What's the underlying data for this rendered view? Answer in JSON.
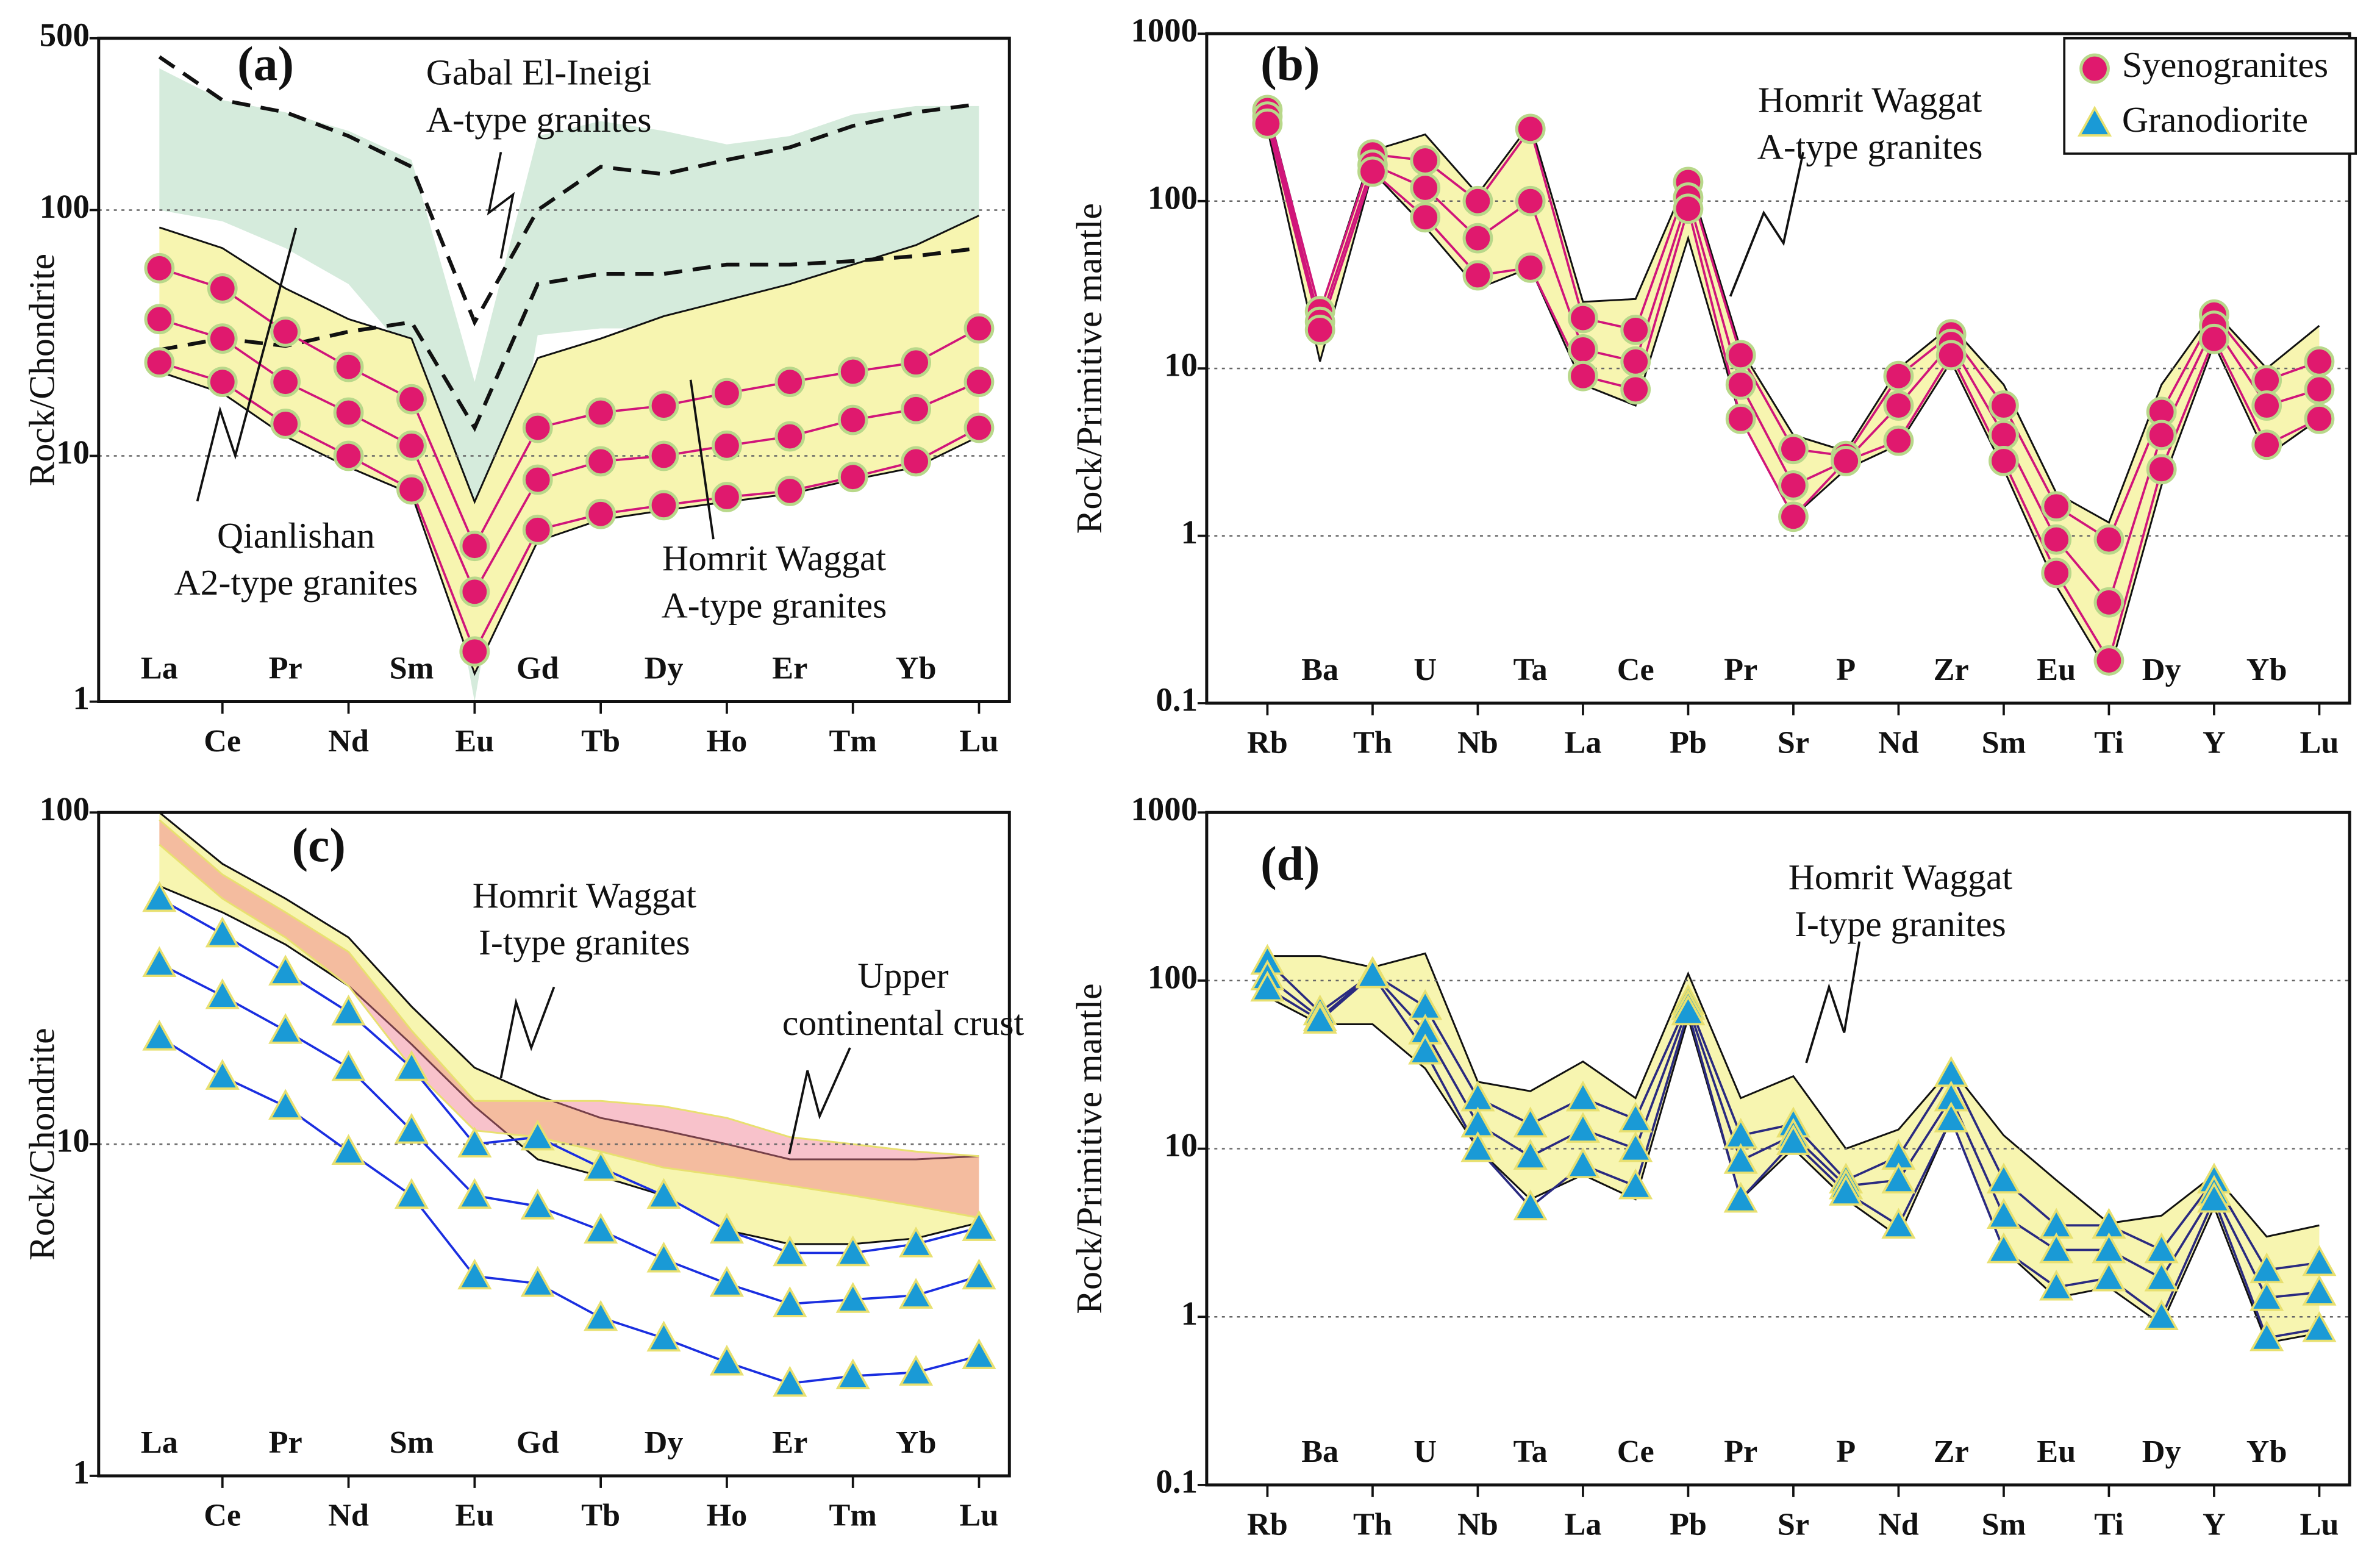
{
  "chart_data": [
    {
      "type": "line",
      "label": "(a)",
      "y_label": "Rock/Chondrite",
      "log_scale": true,
      "grid": true,
      "categories": [
        "La",
        "Ce",
        "Pr",
        "Nd",
        "Sm",
        "Eu",
        "Gd",
        "Tb",
        "Dy",
        "Ho",
        "Er",
        "Tm",
        "Yb",
        "Lu"
      ],
      "ylim": [
        1,
        500
      ],
      "yticks": [
        1,
        10,
        100,
        500
      ],
      "line_color": "#d0157a",
      "marker": "circle",
      "marker_color": "#e0196e",
      "marker_edge": "#b8d88a",
      "fields": [
        {
          "label": [
            "Gabal El-Ineigi",
            "A-type granites"
          ],
          "fill": "#d5ebdc",
          "stroke": "none",
          "style": "solid",
          "upper": [
            377,
            280,
            250,
            210,
            160,
            20,
            200,
            230,
            210,
            185,
            200,
            245,
            265,
            265
          ],
          "lower": [
            100,
            90,
            70,
            50,
            25,
            1,
            31,
            33,
            33,
            33,
            33,
            33,
            33,
            33
          ]
        },
        {
          "label": [
            "Homrit Waggat",
            "A-type granites"
          ],
          "fill": "#f7f5b0",
          "stroke": "#111",
          "style": "solid",
          "upper": [
            85,
            70,
            48,
            36,
            30,
            6.5,
            25,
            30,
            37,
            43,
            50,
            60,
            72,
            95
          ],
          "lower": [
            22,
            18,
            12,
            9,
            7,
            1.3,
            4.5,
            5.5,
            6,
            6.5,
            7,
            8,
            9,
            12
          ]
        },
        {
          "label": [
            "Qianlishan",
            "A2-type granites"
          ],
          "fill": "none",
          "stroke": "#111",
          "style": "dashed",
          "upper": [
            420,
            280,
            250,
            200,
            150,
            35,
            100,
            150,
            140,
            160,
            180,
            220,
            250,
            270
          ],
          "lower": [
            27,
            30,
            28,
            32,
            35,
            13,
            50,
            55,
            55,
            60,
            60,
            62,
            65,
            70
          ]
        }
      ],
      "series": [
        {
          "values": [
            58,
            48,
            32,
            23,
            17,
            4.3,
            13,
            15,
            16,
            18,
            20,
            22,
            24,
            33
          ]
        },
        {
          "values": [
            36,
            30,
            20,
            15,
            11,
            2.8,
            8,
            9.5,
            10,
            11,
            12,
            14,
            15.5,
            20
          ]
        },
        {
          "values": [
            24,
            20,
            13.5,
            10,
            7.3,
            1.6,
            5,
            5.8,
            6.3,
            6.8,
            7.2,
            8.2,
            9.5,
            13
          ]
        }
      ]
    },
    {
      "type": "line",
      "label": "(b)",
      "y_label": "Rock/Primitive mantle",
      "log_scale": true,
      "grid": true,
      "categories": [
        "Rb",
        "Ba",
        "Th",
        "U",
        "Nb",
        "Ta",
        "La",
        "Ce",
        "Pb",
        "Pr",
        "Sr",
        "P",
        "Nd",
        "Zr",
        "Sm",
        "Eu",
        "Ti",
        "Dy",
        "Y",
        "Yb",
        "Lu"
      ],
      "ylim": [
        0.1,
        1000
      ],
      "yticks": [
        0.1,
        1,
        10,
        100,
        1000
      ],
      "line_color": "#d0157a",
      "marker": "circle",
      "marker_color": "#e0196e",
      "marker_edge": "#b8d88a",
      "legend": [
        {
          "name": "Syenogranites",
          "marker": "circle",
          "color": "#e0196e"
        },
        {
          "name": "Granodiorite",
          "marker": "triangle",
          "color": "#1a9ad6"
        }
      ],
      "fields": [
        {
          "label": [
            "Homrit Waggat",
            "A-type granites"
          ],
          "fill": "#f7f5b0",
          "stroke": "#111",
          "style": "solid",
          "upper": [
            360,
            22,
            200,
            250,
            110,
            290,
            25,
            26,
            140,
            13,
            4,
            3.2,
            10,
            18,
            8,
            1.8,
            1.2,
            8,
            22,
            10,
            18
          ],
          "lower": [
            270,
            11,
            150,
            70,
            30,
            40,
            8,
            6,
            60,
            5,
            1.3,
            2.5,
            3.5,
            11,
            2.5,
            0.5,
            0.15,
            2,
            14,
            3,
            5
          ]
        }
      ],
      "series": [
        {
          "values": [
            350,
            22,
            190,
            175,
            100,
            270,
            20,
            17,
            130,
            12,
            3.3,
            3,
            9,
            16,
            6,
            1.5,
            0.95,
            5.5,
            21,
            8.5,
            11
          ]
        },
        {
          "values": [
            320,
            19,
            165,
            120,
            60,
            100,
            13,
            11,
            105,
            8,
            2,
            2.8,
            6,
            14,
            4,
            0.95,
            0.4,
            4,
            18,
            6,
            7.5
          ]
        },
        {
          "values": [
            290,
            17,
            150,
            80,
            36,
            40,
            9,
            7.5,
            90,
            5,
            1.3,
            2.8,
            3.7,
            12,
            2.8,
            0.6,
            0.18,
            2.5,
            15,
            3.5,
            5
          ]
        }
      ]
    },
    {
      "type": "line",
      "label": "(c)",
      "y_label": "Rock/Chondrite",
      "log_scale": true,
      "grid": true,
      "categories": [
        "La",
        "Ce",
        "Pr",
        "Nd",
        "Sm",
        "Eu",
        "Gd",
        "Tb",
        "Dy",
        "Ho",
        "Er",
        "Tm",
        "Yb",
        "Lu"
      ],
      "ylim": [
        1,
        100
      ],
      "yticks": [
        1,
        10,
        100
      ],
      "line_color": "#1a2ee0",
      "marker": "triangle",
      "marker_color": "#1a9ad6",
      "marker_edge": "#e8e070",
      "fields": [
        {
          "label": [
            "Homrit Waggat",
            "I-type granites"
          ],
          "fill": "#f7f5b0",
          "stroke": "#111",
          "style": "solid",
          "upper": [
            100,
            70,
            55,
            42,
            26,
            17,
            14,
            12,
            11,
            10,
            9,
            9,
            9,
            9.2
          ],
          "lower": [
            60,
            50,
            40,
            30,
            20,
            13,
            9,
            8,
            7,
            5.5,
            5,
            5,
            5.2,
            5.8
          ]
        },
        {
          "label": [
            "Upper",
            "continental crust"
          ],
          "fill": "rgba(240,120,140,0.45)",
          "stroke": "#e8e070",
          "style": "solid",
          "upper": [
            95,
            65,
            50,
            38,
            22,
            13.5,
            13.5,
            13.5,
            13,
            12,
            10.5,
            10,
            9.5,
            9.2
          ],
          "lower": [
            80,
            55,
            42,
            30,
            17,
            11,
            10.5,
            9.5,
            8.5,
            8,
            7.5,
            7,
            6.5,
            6
          ]
        }
      ],
      "series": [
        {
          "values": [
            55,
            43,
            33,
            25,
            17,
            10,
            10.5,
            8.5,
            7,
            5.5,
            4.7,
            4.7,
            5,
            5.6
          ]
        },
        {
          "values": [
            35,
            28,
            22,
            17,
            11,
            7,
            6.5,
            5.5,
            4.5,
            3.8,
            3.3,
            3.4,
            3.5,
            4
          ]
        },
        {
          "values": [
            21,
            16,
            13,
            9.5,
            7,
            4,
            3.8,
            3,
            2.6,
            2.2,
            1.9,
            2,
            2.05,
            2.3
          ]
        }
      ]
    },
    {
      "type": "line",
      "label": "(d)",
      "y_label": "Rock/Primitive mantle",
      "log_scale": true,
      "grid": true,
      "categories": [
        "Rb",
        "Ba",
        "Th",
        "U",
        "Nb",
        "Ta",
        "La",
        "Ce",
        "Pb",
        "Pr",
        "Sr",
        "P",
        "Nd",
        "Zr",
        "Sm",
        "Eu",
        "Ti",
        "Dy",
        "Y",
        "Yb",
        "Lu"
      ],
      "ylim": [
        0.1,
        1000
      ],
      "yticks": [
        0.1,
        1,
        10,
        100,
        1000
      ],
      "line_color": "#2a2a80",
      "marker": "triangle",
      "marker_color": "#1a9ad6",
      "marker_edge": "#e8e070",
      "fields": [
        {
          "label": [
            "Homrit Waggat",
            "I-type granites"
          ],
          "fill": "#f7f5b0",
          "stroke": "#111",
          "style": "solid",
          "upper": [
            140,
            140,
            120,
            145,
            25,
            22,
            33,
            20,
            110,
            20,
            27,
            10,
            13,
            30,
            12,
            6.5,
            3.6,
            4,
            7,
            3,
            3.5
          ],
          "lower": [
            80,
            55,
            55,
            30,
            10,
            5,
            7,
            5,
            60,
            5,
            10,
            5,
            3,
            15,
            2.5,
            1.3,
            1.5,
            0.9,
            4.5,
            0.7,
            0.8
          ]
        }
      ],
      "series": [
        {
          "values": [
            130,
            65,
            110,
            70,
            20,
            14,
            20,
            15,
            75,
            12,
            14,
            6.5,
            9,
            28,
            6.5,
            3.5,
            3.5,
            2.5,
            6.5,
            1.9,
            2.1
          ]
        },
        {
          "values": [
            105,
            60,
            110,
            50,
            14,
            9,
            13,
            10,
            70,
            8.5,
            12,
            6,
            6.5,
            20,
            4,
            2.5,
            2.5,
            1.7,
            5.5,
            1.3,
            1.4
          ]
        },
        {
          "values": [
            90,
            58,
            108,
            38,
            10,
            4.5,
            8,
            6,
            65,
            5,
            11,
            5.5,
            3.5,
            15,
            2.5,
            1.5,
            1.7,
            1,
            5,
            0.75,
            0.85
          ]
        }
      ]
    }
  ]
}
